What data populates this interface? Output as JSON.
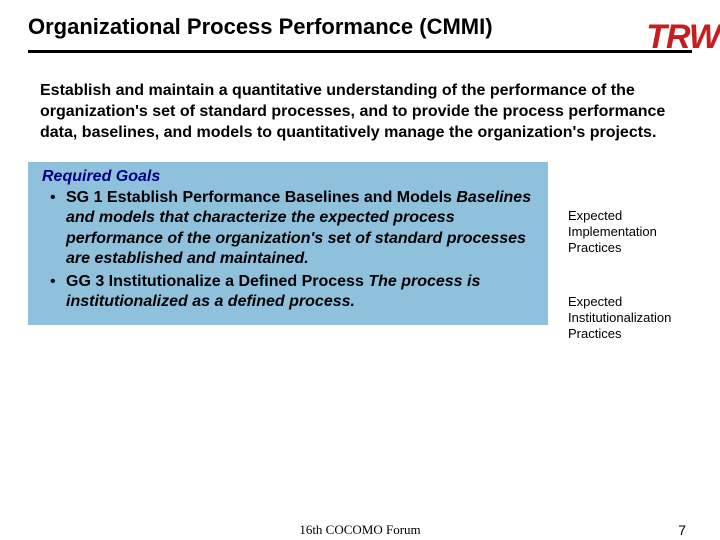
{
  "title": "Organizational Process Performance (CMMI)",
  "logo": {
    "text": "TRW",
    "color": "#c41e1e"
  },
  "intro": "Establish and maintain a quantitative understanding of the performance of the organization's set of standard processes, and to provide the process performance data, baselines, and models to quantitatively manage the organization's projects.",
  "goals": {
    "heading": "Required Goals",
    "box_color": "#8fc1dd",
    "heading_color": "#000080",
    "items": [
      {
        "label": "SG 1 Establish Performance Baselines and Models",
        "desc": "Baselines and models that characterize the expected process performance of the organization's set of standard processes are established and maintained."
      },
      {
        "label": "GG 3 Institutionalize a Defined Process",
        "desc": "The process is institutionalized as a defined process."
      }
    ]
  },
  "annotations": [
    "Expected Implementation Practices",
    "Expected Institutionalization Practices"
  ],
  "footer": {
    "center": "16th COCOMO Forum",
    "page": "7"
  }
}
